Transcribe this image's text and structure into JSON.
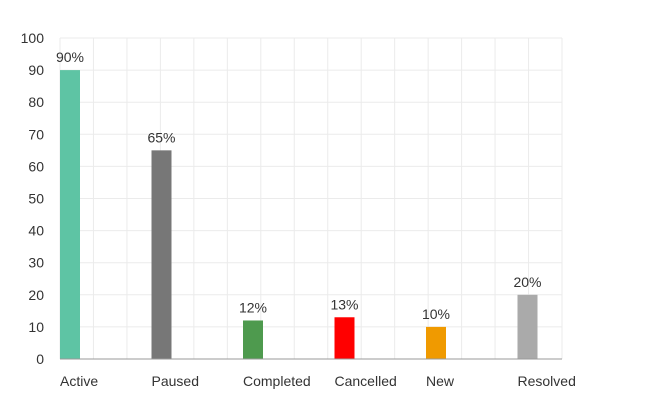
{
  "chart_data": {
    "type": "bar",
    "title": "",
    "xlabel": "",
    "ylabel": "",
    "categories": [
      "Active",
      "Paused",
      "Completed",
      "Cancelled",
      "New",
      "Resolved"
    ],
    "values": [
      90,
      65,
      12,
      13,
      10,
      20
    ],
    "value_labels": [
      "90%",
      "65%",
      "12%",
      "13%",
      "10%",
      "20%"
    ],
    "colors": [
      "#5ec4a4",
      "#777777",
      "#4e9a4e",
      "#ff0000",
      "#f09a00",
      "#aaaaaa"
    ],
    "ylim": [
      0,
      100
    ],
    "yticks": [
      0,
      10,
      20,
      30,
      40,
      50,
      60,
      70,
      80,
      90,
      100
    ],
    "grid": true,
    "legend": "none"
  }
}
